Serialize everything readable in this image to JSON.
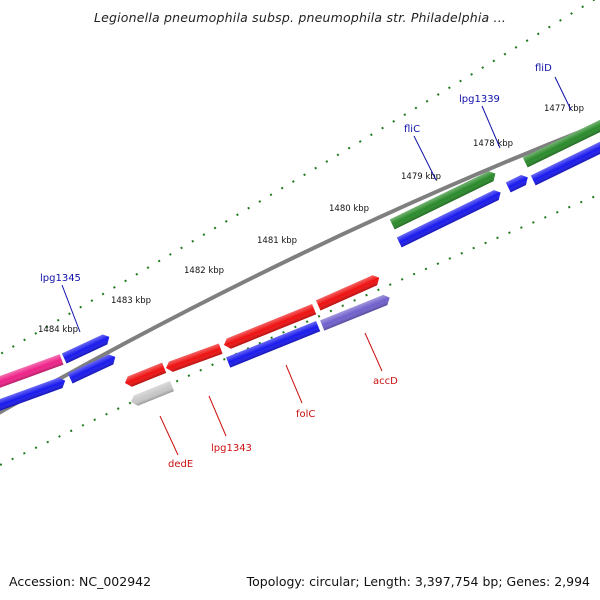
{
  "title": "Legionella pneumophila subsp. pneumophila str. Philadelphia ...",
  "footer": {
    "accession": "Accession: NC_002942",
    "topology": "Topology: circular; Length: 3,397,754 bp; Genes: 2,994"
  },
  "colors": {
    "backbone": "#7f7f7f",
    "tick_dots": "#1d7a1d",
    "top_label": "#1010aa",
    "bottom_label": "#cc1010",
    "green_gene": "#2a8a2a",
    "blue_gene": "#1a1aee",
    "red_gene": "#ee1111",
    "magenta_gene": "#ee2288",
    "violet_gene": "#7060cc",
    "grey_gene": "#c8c8c8"
  },
  "scale": {
    "unit": "kbp",
    "labels": [
      {
        "text": "1477 kbp"
      },
      {
        "text": "1478 kbp"
      },
      {
        "text": "1479 kbp"
      },
      {
        "text": "1480 kbp"
      },
      {
        "text": "1481 kbp"
      },
      {
        "text": "1482 kbp"
      },
      {
        "text": "1483 kbp"
      },
      {
        "text": "1484 kbp"
      }
    ]
  },
  "genes_top": [
    {
      "name": "fliD",
      "color": "green"
    },
    {
      "name": "lpg1339",
      "color": "blue"
    },
    {
      "name": "fliC",
      "color": "green"
    },
    {
      "name": "lpg1345",
      "color": "blue"
    }
  ],
  "genes_bottom": [
    {
      "name": "dedE",
      "color": "grey"
    },
    {
      "name": "lpg1343",
      "color": "red"
    },
    {
      "name": "folC",
      "color": "red"
    },
    {
      "name": "accD",
      "color": "violet"
    }
  ]
}
